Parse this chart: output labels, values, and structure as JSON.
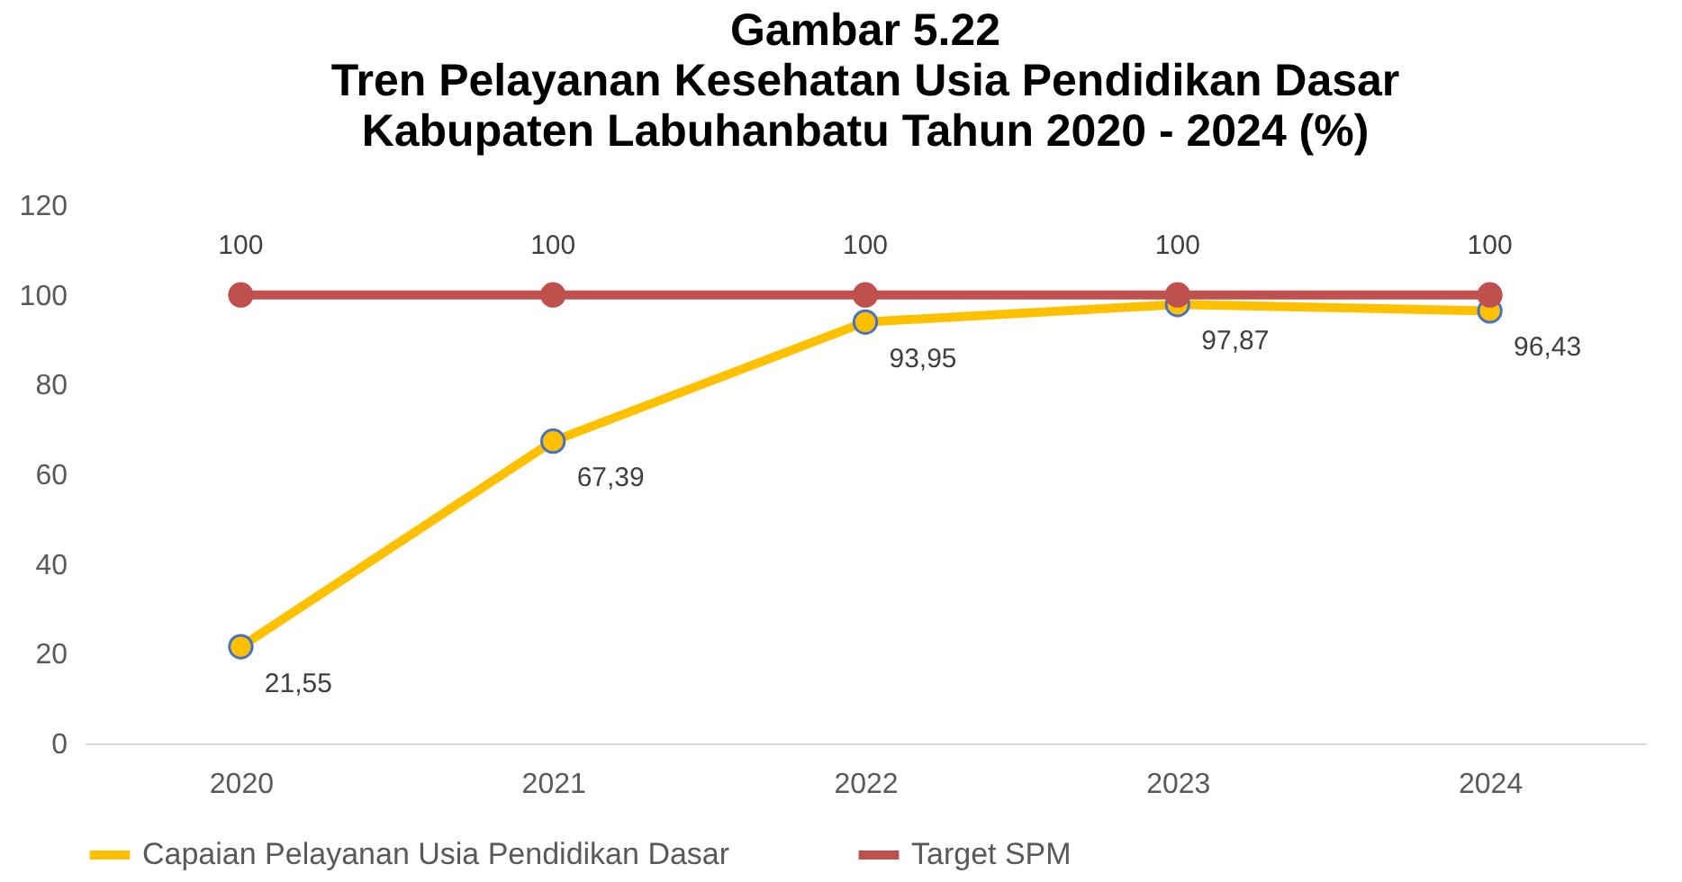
{
  "chart_data": {
    "type": "line",
    "title": "Gambar 5.22\nTren Pelayanan Kesehatan Usia Pendidikan Dasar\nKabupaten Labuhanbatu Tahun 2020 - 2024 (%)",
    "categories": [
      "2020",
      "2021",
      "2022",
      "2023",
      "2024"
    ],
    "series": [
      {
        "name": "Capaian Pelayanan Usia Pendidikan Dasar",
        "color": "#ffc000",
        "values": [
          21.55,
          67.39,
          93.95,
          97.87,
          96.43
        ],
        "value_labels": [
          "21,55",
          "67,39",
          "93,95",
          "97,87",
          "96,43"
        ]
      },
      {
        "name": "Target SPM",
        "color": "#c0504d",
        "values": [
          100,
          100,
          100,
          100,
          100
        ],
        "value_labels": [
          "100",
          "100",
          "100",
          "100",
          "100"
        ]
      }
    ],
    "ylim": [
      0,
      120
    ],
    "yticks": [
      0,
      20,
      40,
      60,
      80,
      100,
      120
    ],
    "grid": false,
    "legend": "bottom",
    "marker": "circle",
    "line_style": "solid"
  }
}
